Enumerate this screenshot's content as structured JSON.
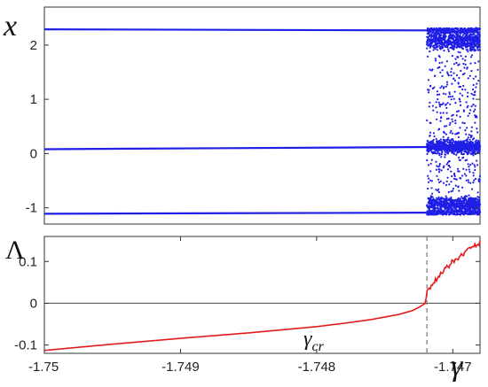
{
  "chart_data": [
    {
      "type": "scatter",
      "ylabel": "x",
      "xlim": [
        -1.75,
        -1.7468
      ],
      "ylim": [
        -1.3,
        2.7
      ],
      "yticks": [
        -1,
        0,
        1,
        2
      ],
      "ytick_labels": [
        "-1",
        "0",
        "1",
        "2"
      ],
      "color": "#1f1fe6",
      "periodic_region": {
        "x_range": [
          -1.75,
          -1.74719
        ],
        "branches": [
          {
            "y_start": 2.29,
            "y_end": 2.27
          },
          {
            "y_start": 0.08,
            "y_end": 0.12
          },
          {
            "y_start": -1.11,
            "y_end": -1.09
          }
        ]
      },
      "chaotic_region": {
        "x_range": [
          -1.74719,
          -1.7468
        ],
        "bands": [
          {
            "y_min": 1.85,
            "y_max": 2.32
          },
          {
            "y_min": -0.05,
            "y_max": 0.3
          },
          {
            "y_min": -1.12,
            "y_max": -0.75
          }
        ],
        "sparse_range": [
          -1.12,
          2.32
        ]
      }
    },
    {
      "type": "line",
      "ylabel": "Λ",
      "xlabel": "γ",
      "xlim": [
        -1.75,
        -1.7468
      ],
      "ylim": [
        -0.12,
        0.16
      ],
      "yticks": [
        -0.1,
        0,
        0.1
      ],
      "ytick_labels": [
        "-0.1",
        "0",
        "0.1"
      ],
      "xticks": [
        -1.75,
        -1.749,
        -1.748,
        -1.747
      ],
      "xtick_labels": [
        "-1.75",
        "-1.749",
        "-1.748",
        "-1.747"
      ],
      "color": "#e31a1c",
      "x": [
        -1.75,
        -1.7495,
        -1.749,
        -1.7485,
        -1.748,
        -1.7478,
        -1.7476,
        -1.7474,
        -1.7473,
        -1.74725,
        -1.7472,
        -1.74719,
        -1.7471,
        -1.747,
        -1.7469,
        -1.7468
      ],
      "y": [
        -0.113,
        -0.098,
        -0.084,
        -0.071,
        -0.056,
        -0.048,
        -0.039,
        -0.027,
        -0.018,
        -0.01,
        0.0,
        0.03,
        0.065,
        0.1,
        0.125,
        0.145
      ],
      "critical_value": {
        "x": -1.74719,
        "label": "γ_cr"
      },
      "zero_line": true
    }
  ],
  "labels": {
    "top_ylabel": "x",
    "bottom_ylabel": "Λ",
    "xlabel": "γ",
    "critical_main": "γ",
    "critical_sub": "cr"
  }
}
